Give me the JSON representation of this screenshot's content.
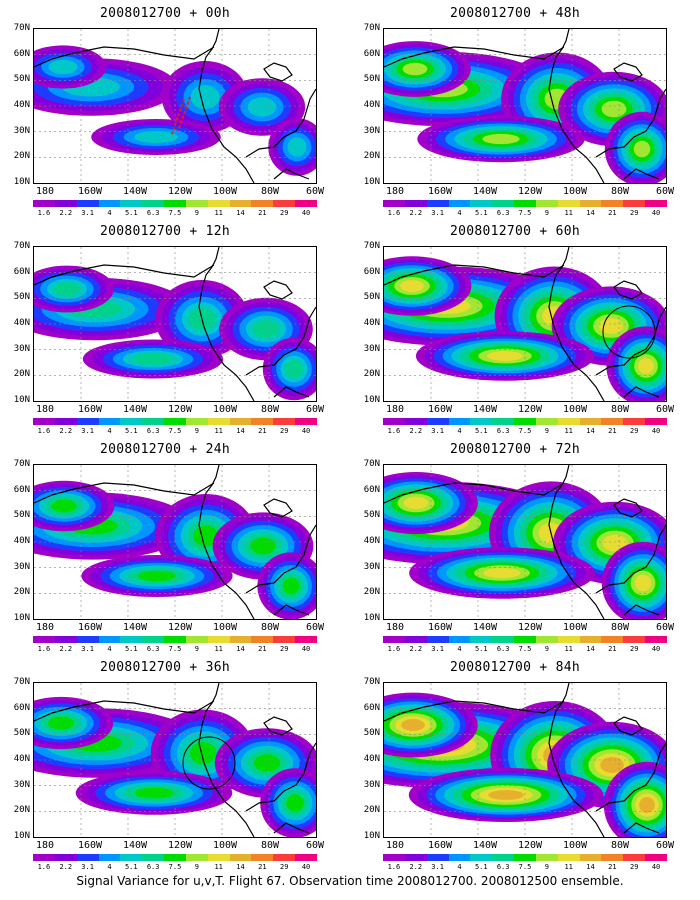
{
  "panels": [
    {
      "title": "2008012700 + 00h",
      "intensity": 0.2,
      "circle": false,
      "flight_track": true
    },
    {
      "title": "2008012700 + 48h",
      "intensity": 0.55,
      "circle": false,
      "flight_track": false
    },
    {
      "title": "2008012700 + 12h",
      "intensity": 0.3,
      "circle": false,
      "flight_track": false
    },
    {
      "title": "2008012700 + 60h",
      "intensity": 0.65,
      "circle": true,
      "flight_track": false
    },
    {
      "title": "2008012700 + 24h",
      "intensity": 0.4,
      "circle": false,
      "flight_track": false
    },
    {
      "title": "2008012700 + 72h",
      "intensity": 0.72,
      "circle": false,
      "flight_track": false
    },
    {
      "title": "2008012700 + 36h",
      "intensity": 0.45,
      "circle": true,
      "flight_track": false
    },
    {
      "title": "2008012700 + 84h",
      "intensity": 0.8,
      "circle": false,
      "flight_track": false
    }
  ],
  "y_axis_labels": [
    "70N",
    "60N",
    "50N",
    "40N",
    "30N",
    "20N",
    "10N"
  ],
  "x_axis_labels": [
    "180",
    "160W",
    "140W",
    "120W",
    "100W",
    "80W",
    "60W"
  ],
  "colorbar": {
    "labels": [
      "1.6",
      "2.2",
      "3.1",
      "4",
      "5.1",
      "6.3",
      "7.5",
      "9",
      "11",
      "14",
      "21",
      "29",
      "40"
    ],
    "colors": [
      "#a000c8",
      "#8200dc",
      "#1e3cff",
      "#0096ff",
      "#00c8c8",
      "#00d28c",
      "#00dc00",
      "#a0e632",
      "#e6dc32",
      "#e6af2d",
      "#f08228",
      "#fa3c3c",
      "#f00082"
    ]
  },
  "footer": "Signal Variance for u,v,T. Flight 67. Observation time 2008012700. 2008012500 ensemble."
}
